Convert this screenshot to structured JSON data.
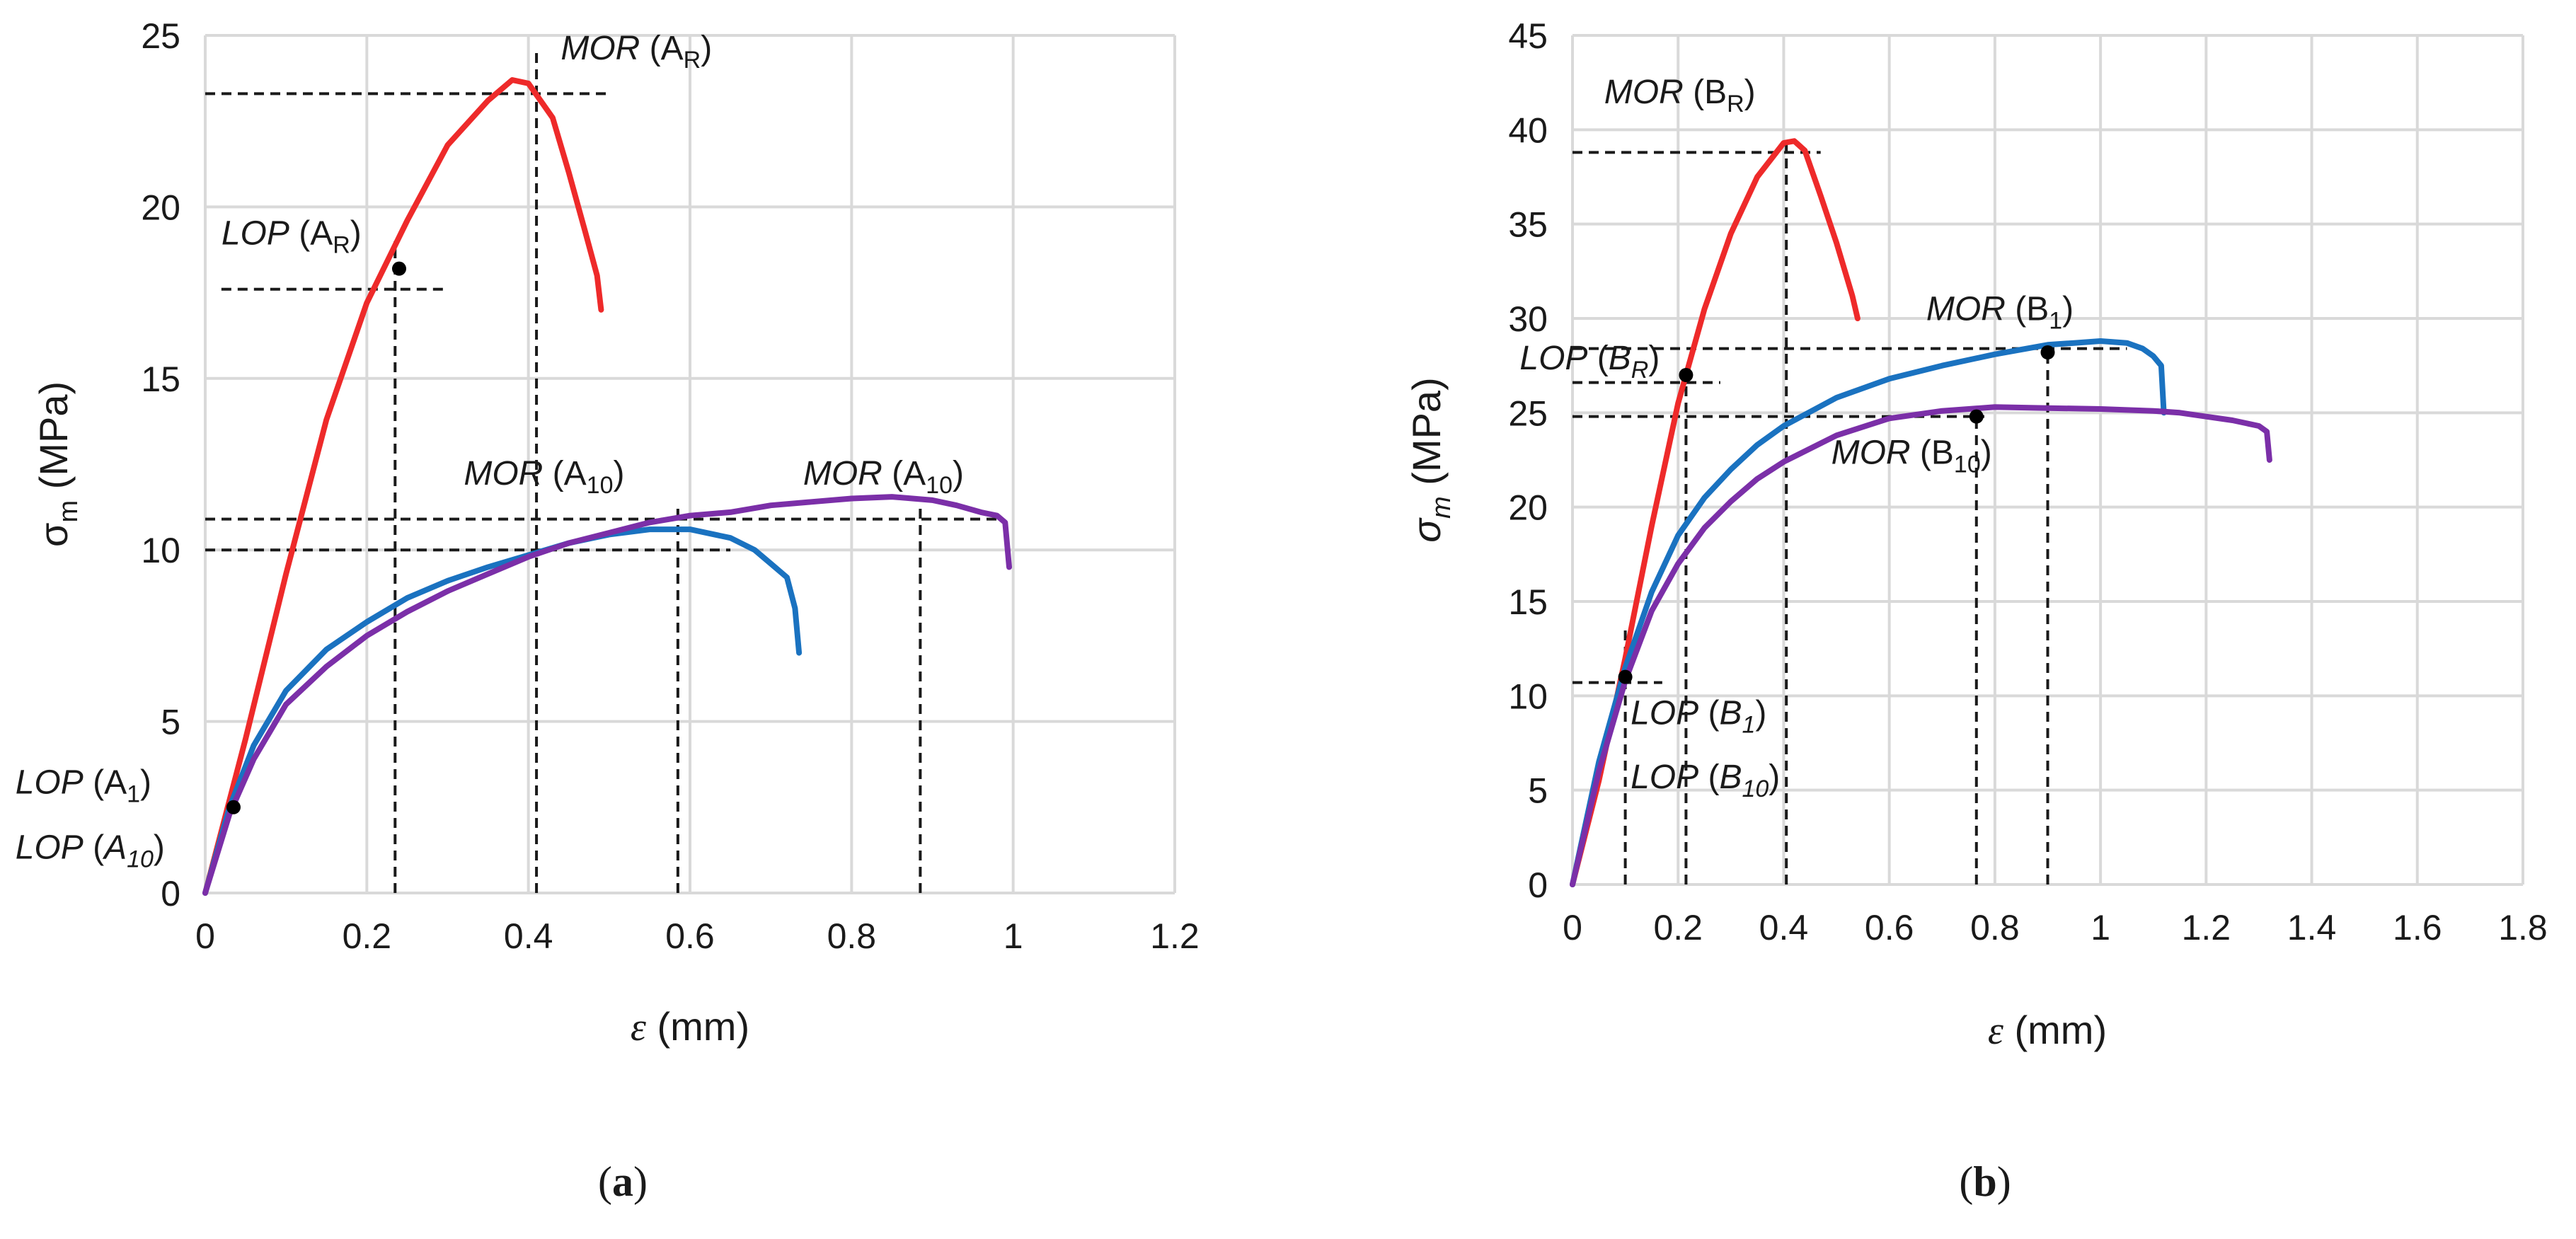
{
  "chart_data": [
    {
      "panel": "a",
      "caption": "(a)",
      "type": "line",
      "xlabel": "ε (mm)",
      "ylabel": "σm (MPa)",
      "xlim": [
        0,
        1.2
      ],
      "ylim": [
        0,
        25
      ],
      "x_ticks": [
        0,
        0.2,
        0.4,
        0.6,
        0.8,
        1,
        1.2
      ],
      "x_tick_labels": [
        "0",
        "0.2",
        "0.4",
        "0.6",
        "0.8",
        "1",
        "1.2"
      ],
      "y_ticks": [
        0,
        5,
        10,
        15,
        20,
        25
      ],
      "y_tick_labels": [
        "0",
        "5",
        "10",
        "15",
        "20",
        "25"
      ],
      "grid": true,
      "series": [
        {
          "name": "AR",
          "color": "#ee2a2a",
          "x": [
            0,
            0.05,
            0.1,
            0.15,
            0.2,
            0.25,
            0.3,
            0.35,
            0.38,
            0.4,
            0.43,
            0.45,
            0.47,
            0.485,
            0.49
          ],
          "y": [
            0,
            4.5,
            9.3,
            13.8,
            17.2,
            19.6,
            21.8,
            23.1,
            23.7,
            23.6,
            22.6,
            21.0,
            19.3,
            18.0,
            17.0
          ]
        },
        {
          "name": "A1",
          "color": "#1a72c0",
          "x": [
            0,
            0.03,
            0.06,
            0.1,
            0.15,
            0.2,
            0.25,
            0.3,
            0.35,
            0.4,
            0.45,
            0.5,
            0.55,
            0.6,
            0.65,
            0.68,
            0.7,
            0.72,
            0.73,
            0.735
          ],
          "y": [
            0,
            2.5,
            4.3,
            5.9,
            7.1,
            7.9,
            8.6,
            9.1,
            9.5,
            9.85,
            10.2,
            10.45,
            10.6,
            10.6,
            10.35,
            10.0,
            9.6,
            9.2,
            8.3,
            7.0
          ]
        },
        {
          "name": "A10",
          "color": "#7b2fa8",
          "x": [
            0,
            0.03,
            0.06,
            0.1,
            0.15,
            0.2,
            0.25,
            0.3,
            0.35,
            0.4,
            0.45,
            0.5,
            0.55,
            0.6,
            0.65,
            0.7,
            0.75,
            0.8,
            0.85,
            0.9,
            0.93,
            0.96,
            0.98,
            0.99,
            0.995
          ],
          "y": [
            0,
            2.3,
            3.9,
            5.5,
            6.6,
            7.5,
            8.2,
            8.8,
            9.3,
            9.8,
            10.2,
            10.5,
            10.8,
            11.0,
            11.1,
            11.3,
            11.4,
            11.5,
            11.55,
            11.45,
            11.3,
            11.1,
            11.0,
            10.8,
            9.5
          ]
        }
      ],
      "markers": [
        {
          "x": 0.035,
          "y": 2.5
        },
        {
          "x": 0.24,
          "y": 18.2
        }
      ],
      "guides": [
        {
          "x1": 0,
          "y1": 23.3,
          "x2": 0.5,
          "y2": 23.3
        },
        {
          "x1": 0.41,
          "y1": 0,
          "x2": 0.41,
          "y2": 24.5
        },
        {
          "x1": 0.02,
          "y1": 17.6,
          "x2": 0.3,
          "y2": 17.6
        },
        {
          "x1": 0.235,
          "y1": 0,
          "x2": 0.235,
          "y2": 19.0
        },
        {
          "x1": 0,
          "y1": 10.0,
          "x2": 0.65,
          "y2": 10.0
        },
        {
          "x1": 0,
          "y1": 10.9,
          "x2": 0.98,
          "y2": 10.9
        },
        {
          "x1": 0.585,
          "y1": 0,
          "x2": 0.585,
          "y2": 11.2
        },
        {
          "x1": 0.885,
          "y1": 0,
          "x2": 0.885,
          "y2": 11.3
        }
      ],
      "annotations": [
        {
          "italic": "MOR",
          "base": " (A",
          "sub": "R",
          "close": ")",
          "x": 0.44,
          "y": 24.3
        },
        {
          "italic": "LOP",
          "base": " (A",
          "sub": "R",
          "close": ")",
          "x": 0.02,
          "y": 18.9
        },
        {
          "italic": "MOR",
          "base": " (A",
          "sub": "10",
          "close": ")",
          "x": 0.32,
          "y": 11.9
        },
        {
          "italic": "MOR",
          "base": " (A",
          "sub": "10",
          "close": ")",
          "x": 0.74,
          "y": 11.9
        },
        {
          "italic": "LOP",
          "base": " (A",
          "sub": "1",
          "close": ")",
          "x": -0.235,
          "y": 2.9
        },
        {
          "italic": "LOP",
          "base": " (",
          "isub": "A",
          "sub": "10",
          "close": ")",
          "x": -0.235,
          "y": 1.0
        }
      ]
    },
    {
      "panel": "b",
      "caption": "(b)",
      "type": "line",
      "xlabel": "ε (mm)",
      "ylabel": "σm (MPa)",
      "xlim": [
        0,
        1.8
      ],
      "ylim": [
        0,
        45
      ],
      "x_ticks": [
        0,
        0.2,
        0.4,
        0.6,
        0.8,
        1,
        1.2,
        1.4,
        1.6,
        1.8
      ],
      "x_tick_labels": [
        "0",
        "0.2",
        "0.4",
        "0.6",
        "0.8",
        "1",
        "1.2",
        "1.4",
        "1.6",
        "1.8"
      ],
      "y_ticks": [
        0,
        5,
        10,
        15,
        20,
        25,
        30,
        35,
        40,
        45
      ],
      "y_tick_labels": [
        "0",
        "5",
        "10",
        "15",
        "20",
        "25",
        "30",
        "35",
        "40",
        "45"
      ],
      "grid": true,
      "series": [
        {
          "name": "BR",
          "color": "#ee2a2a",
          "x": [
            0,
            0.05,
            0.1,
            0.15,
            0.2,
            0.25,
            0.3,
            0.35,
            0.4,
            0.42,
            0.44,
            0.47,
            0.5,
            0.53,
            0.54
          ],
          "y": [
            0,
            5.5,
            12,
            19,
            25.5,
            30.5,
            34.5,
            37.5,
            39.3,
            39.4,
            38.9,
            36.5,
            34.0,
            31.2,
            30.0
          ]
        },
        {
          "name": "B1",
          "color": "#1a72c0",
          "x": [
            0,
            0.05,
            0.1,
            0.15,
            0.2,
            0.25,
            0.3,
            0.35,
            0.4,
            0.5,
            0.6,
            0.7,
            0.8,
            0.9,
            0.95,
            1.0,
            1.05,
            1.08,
            1.1,
            1.115,
            1.12
          ],
          "y": [
            0,
            6.5,
            11.5,
            15.5,
            18.5,
            20.5,
            22.0,
            23.3,
            24.3,
            25.8,
            26.8,
            27.5,
            28.1,
            28.6,
            28.7,
            28.8,
            28.7,
            28.4,
            28.0,
            27.5,
            25.0
          ]
        },
        {
          "name": "B10",
          "color": "#7b2fa8",
          "x": [
            0,
            0.05,
            0.1,
            0.15,
            0.2,
            0.25,
            0.3,
            0.35,
            0.4,
            0.5,
            0.6,
            0.7,
            0.8,
            0.9,
            1.0,
            1.1,
            1.15,
            1.2,
            1.25,
            1.3,
            1.315,
            1.32
          ],
          "y": [
            0,
            6.0,
            10.8,
            14.5,
            17.0,
            18.9,
            20.3,
            21.5,
            22.4,
            23.8,
            24.7,
            25.1,
            25.3,
            25.25,
            25.2,
            25.1,
            25.0,
            24.8,
            24.6,
            24.3,
            24.0,
            22.5
          ]
        }
      ],
      "markers": [
        {
          "x": 0.1,
          "y": 11.0
        },
        {
          "x": 0.215,
          "y": 27.0
        },
        {
          "x": 0.9,
          "y": 28.2
        },
        {
          "x": 0.765,
          "y": 24.8
        }
      ],
      "guides": [
        {
          "x1": 0,
          "y1": 38.8,
          "x2": 0.47,
          "y2": 38.8
        },
        {
          "x1": 0.405,
          "y1": 0,
          "x2": 0.405,
          "y2": 39.6
        },
        {
          "x1": 0,
          "y1": 28.4,
          "x2": 1.05,
          "y2": 28.4
        },
        {
          "x1": 0.9,
          "y1": 0,
          "x2": 0.9,
          "y2": 28.4
        },
        {
          "x1": 0,
          "y1": 26.6,
          "x2": 0.28,
          "y2": 26.6
        },
        {
          "x1": 0.215,
          "y1": 0,
          "x2": 0.215,
          "y2": 26.9
        },
        {
          "x1": 0,
          "y1": 24.8,
          "x2": 0.78,
          "y2": 24.8
        },
        {
          "x1": 0.765,
          "y1": 0,
          "x2": 0.765,
          "y2": 24.8
        },
        {
          "x1": 0,
          "y1": 10.7,
          "x2": 0.17,
          "y2": 10.7
        },
        {
          "x1": 0.1,
          "y1": 0,
          "x2": 0.1,
          "y2": 13.5
        }
      ],
      "annotations": [
        {
          "italic": "MOR",
          "base": " (B",
          "sub": "R",
          "close": ")",
          "x": 0.06,
          "y": 41.4
        },
        {
          "italic": "MOR",
          "base": " (B",
          "sub": "1",
          "close": ")",
          "x": 0.67,
          "y": 29.9
        },
        {
          "italic": "LOP",
          "base": " (",
          "isub": "B",
          "sub": "R",
          "close": ")",
          "x": -0.1,
          "y": 27.3
        },
        {
          "italic": "MOR",
          "base": " (B",
          "sub": "10",
          "close": ")",
          "x": 0.49,
          "y": 22.3
        },
        {
          "italic": "LOP",
          "base": " (",
          "isub": "B",
          "sub": "1",
          "close": ")",
          "x": 0.11,
          "y": 8.5
        },
        {
          "italic": "LOP",
          "base": " (",
          "isub": "B",
          "sub": "10",
          "close": ")",
          "x": 0.11,
          "y": 5.1
        }
      ]
    }
  ]
}
